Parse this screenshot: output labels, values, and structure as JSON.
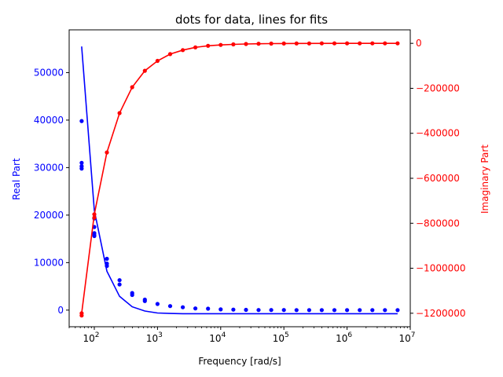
{
  "chart_data": {
    "type": "scatter",
    "title": "dots for data, lines for fits",
    "xlabel": "Frequency [rad/s]",
    "ylabel_left": "Real Part",
    "ylabel_right": "Imaginary Part",
    "xscale": "log",
    "xlim": [
      40,
      10000000
    ],
    "ylim_left": [
      -3500,
      59000
    ],
    "ylim_right": [
      -1260000,
      60000
    ],
    "grid": false,
    "colors": {
      "real": "#0000ff",
      "imag": "#ff0000",
      "axis": "#000000"
    },
    "x_ticks": [
      {
        "value": 100,
        "base": "10",
        "exp": "2"
      },
      {
        "value": 1000,
        "base": "10",
        "exp": "3"
      },
      {
        "value": 10000,
        "base": "10",
        "exp": "4"
      },
      {
        "value": 100000,
        "base": "10",
        "exp": "5"
      },
      {
        "value": 1000000,
        "base": "10",
        "exp": "6"
      },
      {
        "value": 10000000,
        "base": "10",
        "exp": "7"
      }
    ],
    "y_ticks_left": [
      {
        "value": 0,
        "label": "0"
      },
      {
        "value": 10000,
        "label": "10000"
      },
      {
        "value": 20000,
        "label": "20000"
      },
      {
        "value": 30000,
        "label": "30000"
      },
      {
        "value": 40000,
        "label": "40000"
      },
      {
        "value": 50000,
        "label": "50000"
      }
    ],
    "y_ticks_right": [
      {
        "value": 0,
        "label": "0"
      },
      {
        "value": -200000,
        "label": "−200000"
      },
      {
        "value": -400000,
        "label": "−400000"
      },
      {
        "value": -600000,
        "label": "−600000"
      },
      {
        "value": -800000,
        "label": "−800000"
      },
      {
        "value": -1000000,
        "label": "−1000000"
      },
      {
        "value": -1200000,
        "label": "−1200000"
      }
    ],
    "series": [
      {
        "kind": "real-data",
        "x": [
          63,
          63,
          63,
          63,
          100,
          100,
          100,
          100,
          100,
          158,
          158,
          158,
          251,
          251,
          398,
          398,
          631,
          631,
          1000,
          1585,
          2512,
          3981,
          6310,
          10000,
          15849,
          25119,
          39811,
          63096,
          100000,
          158489,
          251189,
          398107,
          630957,
          1000000,
          1584893,
          2511886,
          3981072,
          6309573
        ],
        "y": [
          39800,
          31000,
          30300,
          29800,
          19300,
          17500,
          16200,
          15800,
          15600,
          10800,
          9800,
          9300,
          6300,
          5400,
          3600,
          3200,
          2200,
          1900,
          1300,
          850,
          600,
          350,
          300,
          150,
          100,
          50,
          30,
          20,
          15,
          10,
          10,
          5,
          5,
          5,
          5,
          5,
          5,
          5
        ]
      },
      {
        "kind": "real-fit",
        "x": [
          63,
          100,
          158,
          251,
          398,
          631,
          1000,
          1585,
          2512,
          3981,
          10000,
          100000,
          1000000,
          6309573
        ],
        "y": [
          55500,
          21000,
          8200,
          2900,
          700,
          -200,
          -600,
          -700,
          -750,
          -750,
          -750,
          -750,
          -750,
          -750
        ]
      },
      {
        "kind": "imag-data",
        "x": [
          63,
          63,
          100,
          100,
          158,
          251,
          398,
          631,
          1000,
          1585,
          2512,
          3981,
          6310,
          10000,
          15849,
          25119,
          39811,
          63096,
          100000,
          158489,
          251189,
          398107,
          630957,
          1000000,
          1584893,
          2511886,
          3981072,
          6309573
        ],
        "y": [
          -1200000,
          -1210000,
          -760000,
          -775000,
          -485000,
          -310000,
          -195000,
          -122000,
          -78000,
          -48000,
          -30000,
          -18000,
          -11000,
          -7000,
          -4500,
          -2800,
          -1800,
          -1100,
          -700,
          -450,
          -280,
          -180,
          -110,
          -70,
          -45,
          -30,
          -20,
          -10
        ]
      },
      {
        "kind": "imag-fit",
        "x": [
          63,
          100,
          158,
          251,
          398,
          631,
          1000,
          1585,
          2512,
          3981,
          6310,
          10000,
          15849,
          25119,
          39811,
          63096,
          100000,
          1000000,
          6309573
        ],
        "y": [
          -1200000,
          -760000,
          -485000,
          -310000,
          -195000,
          -122000,
          -78000,
          -48000,
          -30000,
          -18000,
          -11000,
          -7000,
          -4500,
          -2800,
          -1800,
          -1100,
          -700,
          -70,
          -10
        ]
      }
    ]
  }
}
